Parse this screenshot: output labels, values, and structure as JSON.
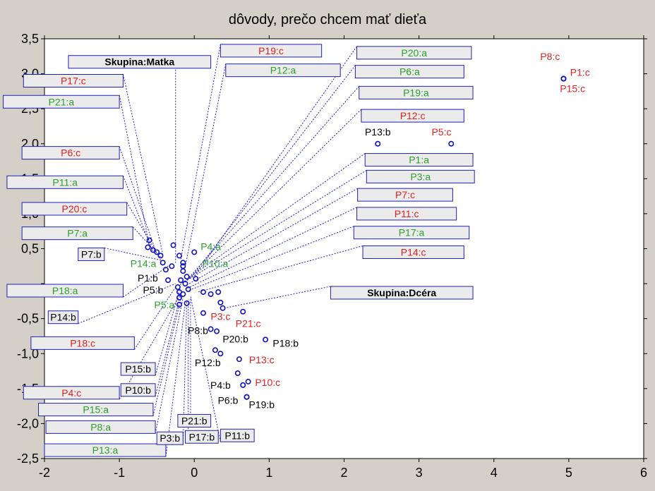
{
  "chart_data": {
    "type": "scatter",
    "title": "dôvody, prečo chcem mať dieťa",
    "xlim": [
      -2,
      6
    ],
    "ylim": [
      -2.5,
      3.5
    ],
    "x_ticks": [
      "-2",
      "-1",
      "0",
      "1",
      "2",
      "3",
      "4",
      "5",
      "6"
    ],
    "y_ticks": [
      "-2,5",
      "-2,0",
      "-1,5",
      "-1,0",
      "-0,5",
      "",
      "0,5",
      "1,0",
      "1,5",
      "2,0",
      "2,5",
      "3,0",
      "3,5"
    ],
    "grid": false,
    "colors": {
      "a": "#2ca02c",
      "b": "#000000",
      "c": "#e02020",
      "group": "#000000",
      "point": "#1010c0",
      "leader": "#2020d0"
    },
    "points": [
      {
        "x": 4.93,
        "y": 2.93,
        "label": "P8:c",
        "cls": "c",
        "tx": 4.75,
        "ty": 3.2
      },
      {
        "x": 4.93,
        "y": 2.93,
        "label": "P1:c",
        "cls": "c",
        "tx": 5.15,
        "ty": 2.97
      },
      {
        "x": 4.93,
        "y": 2.93,
        "label": "P15:c",
        "cls": "c",
        "tx": 5.05,
        "ty": 2.74
      },
      {
        "x": 2.45,
        "y": 2.0,
        "label": "P13:b",
        "cls": "b",
        "tx": 2.45,
        "ty": 2.12
      },
      {
        "x": 3.43,
        "y": 2.0,
        "label": "P5:c",
        "cls": "c",
        "tx": 3.3,
        "ty": 2.12
      },
      {
        "x": 0.0,
        "y": 0.45,
        "label": "P4:a",
        "cls": "a",
        "tx": 0.22,
        "ty": 0.48
      },
      {
        "x": -0.3,
        "y": 0.25,
        "label": "P14:a",
        "cls": "a",
        "tx": -0.68,
        "ty": 0.24
      },
      {
        "x": -0.15,
        "y": 0.25,
        "label": "P10:a",
        "cls": "a",
        "tx": 0.28,
        "ty": 0.24
      },
      {
        "x": -0.35,
        "y": 0.05,
        "label": "P1:b",
        "cls": "b",
        "tx": -0.62,
        "ty": 0.03
      },
      {
        "x": -0.2,
        "y": -0.12,
        "label": "P5:b",
        "cls": "b",
        "tx": -0.55,
        "ty": -0.14
      },
      {
        "x": -0.2,
        "y": -0.3,
        "label": "P5:a",
        "cls": "a",
        "tx": -0.4,
        "ty": -0.35
      },
      {
        "x": 0.12,
        "y": -0.42,
        "label": "P3:c",
        "cls": "c",
        "tx": 0.35,
        "ty": -0.52
      },
      {
        "x": 0.65,
        "y": -0.4,
        "label": "P21:c",
        "cls": "c",
        "tx": 0.72,
        "ty": -0.62
      },
      {
        "x": 0.22,
        "y": -0.65,
        "label": "P8:b",
        "cls": "b",
        "tx": 0.05,
        "ty": -0.72
      },
      {
        "x": 0.28,
        "y": -0.95,
        "label": "P20:b",
        "cls": "b",
        "tx": 0.55,
        "ty": -0.84
      },
      {
        "x": 0.95,
        "y": -0.8,
        "label": "P18:b",
        "cls": "b",
        "tx": 1.22,
        "ty": -0.9
      },
      {
        "x": 0.35,
        "y": -1.0,
        "label": "P12:b",
        "cls": "b",
        "tx": 0.18,
        "ty": -1.18
      },
      {
        "x": 0.6,
        "y": -1.08,
        "label": "P13:c",
        "cls": "c",
        "tx": 0.9,
        "ty": -1.14
      },
      {
        "x": 0.58,
        "y": -1.28,
        "label": "P10:c",
        "cls": "c",
        "tx": 0.98,
        "ty": -1.46
      },
      {
        "x": 0.72,
        "y": -1.4,
        "label": "P4:b",
        "cls": "b",
        "tx": 0.35,
        "ty": -1.5
      },
      {
        "x": 0.7,
        "y": -1.62,
        "label": "P6:b",
        "cls": "b",
        "tx": 0.45,
        "ty": -1.72
      },
      {
        "x": 0.7,
        "y": -1.62,
        "label": "P19:b",
        "cls": "b",
        "tx": 0.9,
        "ty": -1.78
      },
      {
        "x": -0.6,
        "y": 0.62
      },
      {
        "x": -0.62,
        "y": 0.52
      },
      {
        "x": -0.55,
        "y": 0.48
      },
      {
        "x": -0.5,
        "y": 0.45
      },
      {
        "x": -0.45,
        "y": 0.4
      },
      {
        "x": -0.42,
        "y": 0.3
      },
      {
        "x": -0.38,
        "y": 0.2
      },
      {
        "x": -0.28,
        "y": 0.55
      },
      {
        "x": -0.2,
        "y": 0.4
      },
      {
        "x": -0.15,
        "y": 0.3
      },
      {
        "x": -0.15,
        "y": 0.18
      },
      {
        "x": -0.1,
        "y": 0.1
      },
      {
        "x": -0.18,
        "y": 0.05
      },
      {
        "x": -0.12,
        "y": 0.0
      },
      {
        "x": -0.22,
        "y": -0.05
      },
      {
        "x": -0.08,
        "y": -0.08
      },
      {
        "x": -0.15,
        "y": -0.15
      },
      {
        "x": -0.2,
        "y": -0.2
      },
      {
        "x": -0.1,
        "y": -0.28
      },
      {
        "x": 0.02,
        "y": 0.07
      },
      {
        "x": 0.12,
        "y": -0.12
      },
      {
        "x": 0.22,
        "y": -0.15
      },
      {
        "x": 0.32,
        "y": -0.12
      },
      {
        "x": 0.35,
        "y": -0.27
      },
      {
        "x": 0.38,
        "y": -0.35
      },
      {
        "x": 0.3,
        "y": -0.68
      },
      {
        "x": 0.65,
        "y": -1.45
      }
    ],
    "boxes": [
      {
        "label": "Skupina:Matka",
        "cls": "group",
        "x1": -1.68,
        "x2": 0.22,
        "y": 3.17,
        "px": -0.25,
        "py": 0.28
      },
      {
        "label": "P19:c",
        "cls": "c",
        "x1": 0.35,
        "x2": 1.7,
        "y": 3.33,
        "px": -0.18,
        "py": 0.35
      },
      {
        "label": "P12:a",
        "cls": "a",
        "x1": 0.42,
        "x2": 1.95,
        "y": 3.05,
        "px": -0.12,
        "py": 0.25
      },
      {
        "label": "P17:c",
        "cls": "c",
        "x1": -2.28,
        "x2": -0.95,
        "y": 2.9,
        "px": -0.42,
        "py": 0.42
      },
      {
        "label": "P21:a",
        "cls": "a",
        "x1": -2.55,
        "x2": -1.0,
        "y": 2.6,
        "px": -0.6,
        "py": 0.55
      },
      {
        "label": "P6:c",
        "cls": "c",
        "x1": -2.3,
        "x2": -1.0,
        "y": 1.87,
        "px": -0.52,
        "py": 0.48
      },
      {
        "label": "P11:a",
        "cls": "a",
        "x1": -2.5,
        "x2": -0.95,
        "y": 1.45,
        "px": -0.55,
        "py": 0.45
      },
      {
        "label": "P20:c",
        "cls": "c",
        "x1": -2.3,
        "x2": -0.9,
        "y": 1.07,
        "px": -0.48,
        "py": 0.4
      },
      {
        "label": "P7:a",
        "cls": "a",
        "x1": -2.3,
        "x2": -0.82,
        "y": 0.72,
        "px": -0.45,
        "py": 0.38
      },
      {
        "label": "P7:b",
        "cls": "b",
        "x1": -1.55,
        "x2": -1.2,
        "y": 0.42,
        "px": -0.42,
        "py": 0.33
      },
      {
        "label": "P18:a",
        "cls": "a",
        "x1": -2.5,
        "x2": -0.95,
        "y": -0.1,
        "px": -0.35,
        "py": 0.25
      },
      {
        "label": "P14:b",
        "cls": "b",
        "x1": -1.95,
        "x2": -1.55,
        "y": -0.48,
        "px": -0.25,
        "py": 0.0
      },
      {
        "label": "P18:c",
        "cls": "c",
        "x1": -2.18,
        "x2": -0.8,
        "y": -0.85,
        "px": -0.25,
        "py": -0.05
      },
      {
        "label": "P15:b",
        "cls": "b",
        "x1": -0.98,
        "x2": -0.52,
        "y": -1.22,
        "px": -0.2,
        "py": -0.1
      },
      {
        "label": "P10:b",
        "cls": "b",
        "x1": -0.98,
        "x2": -0.52,
        "y": -1.52,
        "px": -0.18,
        "py": -0.15
      },
      {
        "label": "P4:c",
        "cls": "c",
        "x1": -2.28,
        "x2": -1.0,
        "y": -1.56,
        "px": -0.2,
        "py": -0.18
      },
      {
        "label": "P15:a",
        "cls": "a",
        "x1": -2.08,
        "x2": -0.55,
        "y": -1.8,
        "px": -0.18,
        "py": -0.22
      },
      {
        "label": "P8:a",
        "cls": "a",
        "x1": -1.98,
        "x2": -0.52,
        "y": -2.05,
        "px": -0.15,
        "py": -0.2
      },
      {
        "label": "P13:a",
        "cls": "a",
        "x1": -2.0,
        "x2": -0.38,
        "y": -2.38,
        "px": -0.12,
        "py": -0.28
      },
      {
        "label": "P3:b",
        "cls": "b",
        "x1": -0.5,
        "x2": -0.15,
        "y": -2.21,
        "px": -0.1,
        "py": -0.25
      },
      {
        "label": "P21:b",
        "cls": "b",
        "x1": -0.22,
        "x2": 0.22,
        "y": -1.96,
        "px": -0.05,
        "py": -0.2
      },
      {
        "label": "P17:b",
        "cls": "b",
        "x1": -0.12,
        "x2": 0.32,
        "y": -2.19,
        "px": -0.08,
        "py": -0.22
      },
      {
        "label": "P11:b",
        "cls": "b",
        "x1": 0.35,
        "x2": 0.8,
        "y": -2.17,
        "px": -0.05,
        "py": -0.18
      },
      {
        "label": "P20:a",
        "cls": "a",
        "x1": 2.17,
        "x2": 3.7,
        "y": 3.3,
        "px": 0.0,
        "py": 0.1
      },
      {
        "label": "P6:a",
        "cls": "a",
        "x1": 2.15,
        "x2": 3.6,
        "y": 3.03,
        "px": -0.05,
        "py": 0.08
      },
      {
        "label": "P19:a",
        "cls": "a",
        "x1": 2.2,
        "x2": 3.72,
        "y": 2.73,
        "px": -0.1,
        "py": 0.05
      },
      {
        "label": "P12:c",
        "cls": "c",
        "x1": 2.23,
        "x2": 3.6,
        "y": 2.4,
        "px": -0.12,
        "py": 0.02
      },
      {
        "label": "P1:a",
        "cls": "a",
        "x1": 2.28,
        "x2": 3.72,
        "y": 1.77,
        "px": -0.18,
        "py": 0.0
      },
      {
        "label": "P3:a",
        "cls": "a",
        "x1": 2.3,
        "x2": 3.74,
        "y": 1.53,
        "px": -0.2,
        "py": -0.02
      },
      {
        "label": "P7:c",
        "cls": "c",
        "x1": 2.18,
        "x2": 3.45,
        "y": 1.27,
        "px": -0.15,
        "py": -0.05
      },
      {
        "label": "P11:c",
        "cls": "c",
        "x1": 2.17,
        "x2": 3.5,
        "y": 1.0,
        "px": -0.12,
        "py": -0.08
      },
      {
        "label": "P17:a",
        "cls": "a",
        "x1": 2.13,
        "x2": 3.67,
        "y": 0.73,
        "px": -0.08,
        "py": -0.1
      },
      {
        "label": "P14:c",
        "cls": "c",
        "x1": 2.25,
        "x2": 3.6,
        "y": 0.45,
        "px": 0.05,
        "py": -0.12
      },
      {
        "label": "Skupina:Dcéra",
        "cls": "group",
        "x1": 1.82,
        "x2": 3.72,
        "y": -0.13,
        "px": 0.4,
        "py": -0.35
      }
    ]
  }
}
